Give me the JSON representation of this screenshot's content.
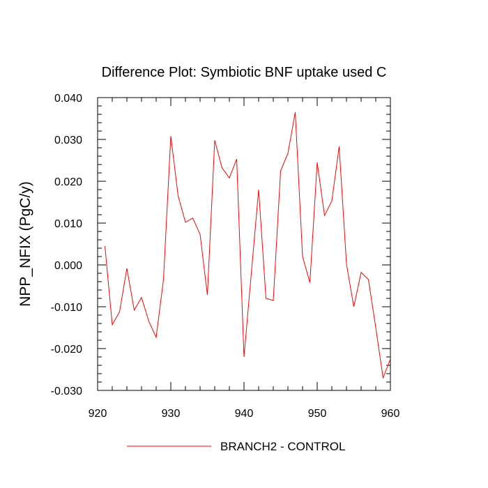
{
  "chart_data": {
    "type": "line",
    "title": "Difference Plot: Symbiotic BNF uptake used C",
    "xlabel": "",
    "ylabel": "NPP_NFIX  (PgC/y)",
    "xlim": [
      920,
      960
    ],
    "ylim": [
      -0.03,
      0.04
    ],
    "xticks": [
      920,
      930,
      940,
      950,
      960
    ],
    "xtick_labels": [
      "920",
      "930",
      "940",
      "950",
      "960"
    ],
    "yticks": [
      -0.03,
      -0.02,
      -0.01,
      0.0,
      0.01,
      0.02,
      0.03,
      0.04
    ],
    "ytick_labels": [
      "-0.030",
      "-0.020",
      "-0.010",
      "0.000",
      "0.010",
      "0.020",
      "0.030",
      "0.040"
    ],
    "grid": false,
    "legend_position": "bottom",
    "series": [
      {
        "name": "BRANCH2 - CONTROL",
        "color": "#ff0000",
        "x": [
          921,
          922,
          923,
          924,
          925,
          926,
          927,
          928,
          929,
          930,
          931,
          932,
          933,
          934,
          935,
          936,
          937,
          938,
          939,
          940,
          941,
          942,
          943,
          944,
          945,
          946,
          947,
          948,
          949,
          950,
          951,
          952,
          953,
          954,
          955,
          956,
          957,
          958,
          959,
          960
        ],
        "y": [
          0.0045,
          -0.0143,
          -0.0112,
          -0.0008,
          -0.0108,
          -0.0078,
          -0.0135,
          -0.0173,
          -0.0035,
          0.0308,
          0.0165,
          0.0102,
          0.0112,
          0.0073,
          -0.0072,
          0.0298,
          0.0232,
          0.0208,
          0.0253,
          -0.022,
          -0.002,
          0.018,
          -0.008,
          -0.0085,
          0.0225,
          0.0267,
          0.0365,
          0.002,
          -0.0042,
          0.0245,
          0.0118,
          0.0153,
          0.0283,
          0.0002,
          -0.01,
          -0.0018,
          -0.0035,
          -0.015,
          -0.027,
          -0.0225
        ]
      }
    ]
  }
}
